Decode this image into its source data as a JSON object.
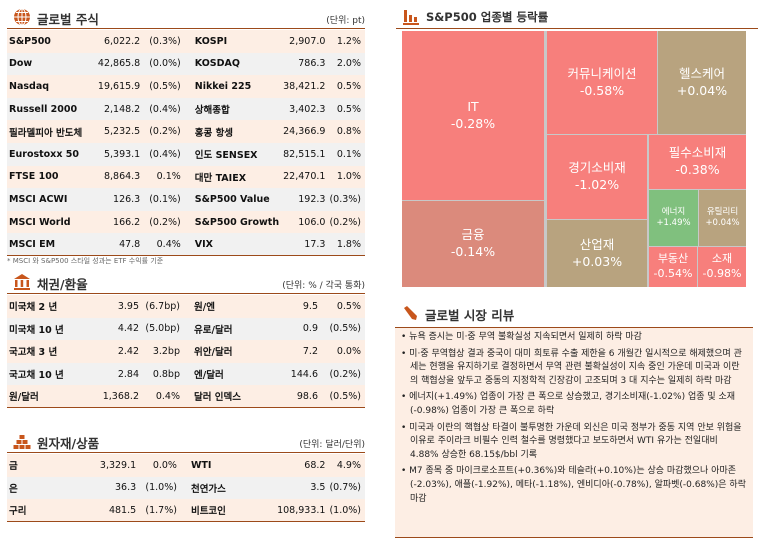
{
  "stocks": {
    "title": "글로벌 주식",
    "unit": "(단위: pt)",
    "note": "* MSCI 와 S&P500 스타일 성과는 ETF 수익률 기준",
    "rows": [
      [
        "S&P500",
        "6,022.2",
        "(0.3%)",
        "KOSPI",
        "2,907.0",
        "1.2%"
      ],
      [
        "Dow",
        "42,865.8",
        "(0.0%)",
        "KOSDAQ",
        "786.3",
        "2.0%"
      ],
      [
        "Nasdaq",
        "19,615.9",
        "(0.5%)",
        "Nikkei 225",
        "38,421.2",
        "0.5%"
      ],
      [
        "Russell 2000",
        "2,148.2",
        "(0.4%)",
        "상해종합",
        "3,402.3",
        "0.5%"
      ],
      [
        "필라델피아 반도체",
        "5,232.5",
        "(0.2%)",
        "홍콩 항셍",
        "24,366.9",
        "0.8%"
      ],
      [
        "Eurostoxx 50",
        "5,393.1",
        "(0.4%)",
        "인도 SENSEX",
        "82,515.1",
        "0.1%"
      ],
      [
        "FTSE 100",
        "8,864.3",
        "0.1%",
        "대만 TAIEX",
        "22,470.1",
        "1.0%"
      ],
      [
        "MSCI ACWI",
        "126.3",
        "(0.1%)",
        "S&P500 Value",
        "192.3",
        "(0.3%)"
      ],
      [
        "MSCI World",
        "166.2",
        "(0.2%)",
        "S&P500 Growth",
        "106.0",
        "(0.2%)"
      ],
      [
        "MSCI EM",
        "47.8",
        "0.4%",
        "VIX",
        "17.3",
        "1.8%"
      ]
    ]
  },
  "bonds": {
    "title": "채권/환율",
    "unit": "(단위: % / 각국 통화)",
    "rows": [
      [
        "미국채 2 년",
        "3.95",
        "(6.7bp)",
        "원/엔",
        "9.5",
        "0.5%"
      ],
      [
        "미국채 10 년",
        "4.42",
        "(5.0bp)",
        "유로/달러",
        "0.9",
        "(0.5%)"
      ],
      [
        "국고채 3 년",
        "2.42",
        "3.2bp",
        "위안/달러",
        "7.2",
        "0.0%"
      ],
      [
        "국고채 10 년",
        "2.84",
        "0.8bp",
        "엔/달러",
        "144.6",
        "(0.2%)"
      ],
      [
        "원/달러",
        "1,368.2",
        "0.4%",
        "달러 인덱스",
        "98.6",
        "(0.5%)"
      ]
    ]
  },
  "commodities": {
    "title": "원자재/상품",
    "unit": "(단위: 달러/단위)",
    "rows": [
      [
        "금",
        "3,329.1",
        "0.0%",
        "WTI",
        "68.2",
        "4.9%"
      ],
      [
        "은",
        "36.3",
        "(1.0%)",
        "천연가스",
        "3.5",
        "(0.7%)"
      ],
      [
        "구리",
        "481.5",
        "(1.7%)",
        "비트코인",
        "108,933.1",
        "(1.0%)"
      ]
    ]
  },
  "treemap": {
    "title": "S&P500 업종별 등락률",
    "colors": {
      "down": "#f77f7c",
      "flat": "#b8a37f",
      "up": "#80c07e",
      "mild_down": "#db8a7c"
    },
    "sectors": [
      {
        "name": "IT",
        "change": "-0.28%",
        "tone": "down"
      },
      {
        "name": "금융",
        "change": "-0.14%",
        "tone": "mild_down"
      },
      {
        "name": "커뮤니케이션",
        "change": "-0.58%",
        "tone": "down"
      },
      {
        "name": "헬스케어",
        "change": "+0.04%",
        "tone": "flat"
      },
      {
        "name": "경기소비재",
        "change": "-1.02%",
        "tone": "down"
      },
      {
        "name": "산업재",
        "change": "+0.03%",
        "tone": "flat"
      },
      {
        "name": "필수소비재",
        "change": "-0.38%",
        "tone": "down"
      },
      {
        "name": "에너지",
        "change": "+1.49%",
        "tone": "up"
      },
      {
        "name": "유틸리티",
        "change": "+0.04%",
        "tone": "flat"
      },
      {
        "name": "부동산",
        "change": "-0.54%",
        "tone": "down"
      },
      {
        "name": "소재",
        "change": "-0.98%",
        "tone": "down"
      }
    ]
  },
  "review": {
    "title": "글로벌 시장 리뷰",
    "bullets": [
      "뉴욕 증시는 미·중 무역 불확실성 지속되면서 일제히 하락 마감",
      "미·중 무역협상 결과 중국이 대미 희토류 수출 제한을 6 개월간 일시적으로 해제했으며 관세는 현행을 유지하기로 결정하면서 무역 관련 불확실성이 지속 중인 가운데 미국과 이란의 핵협상을 앞두고 중동의 지정학적 긴장감이 고조되며 3 대 지수는 일제히 하락 마감",
      "에너지(+1.49%) 업종이 가장 큰 폭으로 상승했고, 경기소비재(-1.02%) 업종 및 소재(-0.98%) 업종이 가장 큰 폭으로 하락",
      "미국과 이란의 핵협상 타결이 불투명한 가운데 외신은 미국 정부가 중동 지역 안보 위험을 이유로 주이라크 비필수 인력 철수를 명령했다고 보도하면서 WTI 유가는 전일대비 4.88% 상승한 68.15$/bbl 기록",
      "M7 종목 중 마이크로소프트(+0.36%)와 테슬라(+0.10%)는 상승 마감했으나 아마존(-2.03%), 애플(-1.92%), 메타(-1.18%), 엔비디아(-0.78%), 알파벳(-0.68%)은 하락 마감"
    ]
  }
}
